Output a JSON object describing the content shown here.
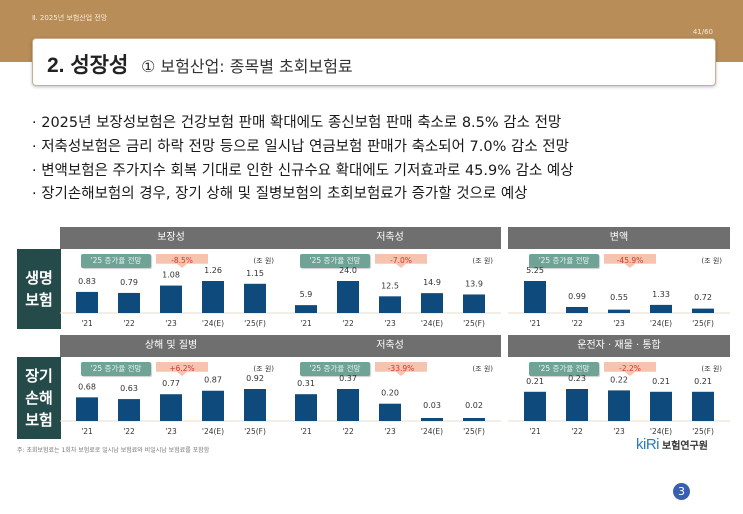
{
  "header": {
    "section_label": "Ⅱ. 2025년 보험산업 전망",
    "page_number": "41/60",
    "title_main": "2. 성장성",
    "title_sub": "① 보험산업: 종목별 초회보험료"
  },
  "bullets": [
    "· 2025년 보장성보험은 건강보험 판매 확대에도 종신보험 판매 축소로 8.5% 감소 전망",
    "· 저축성보험은 금리 하락 전망 등으로 일시납 연금보험 판매가 축소되어 7.0% 감소 전망",
    "· 변액보험은 주가지수 회복 기대로 인한 신규수요 확대에도 기저효과로 45.9% 감소 예상",
    "· 장기손해보험의 경우, 장기 상해 및 질병보험의 초회보험료가 증가할 것으로 예상"
  ],
  "row_labels": {
    "life": [
      "생명",
      "보험"
    ],
    "nonlife": [
      "장기",
      "손해",
      "보험"
    ]
  },
  "badge_label": "'25 증가율 전망",
  "unit_label": "(조 원)",
  "colors": {
    "bar": "#0e4a7c",
    "header_band": "#b98d57",
    "row_label_bg": "#244a4a",
    "panel_header_bg": "#6f6f6f",
    "badge_green": "#6fa396",
    "badge_red_bg": "#f6c3ae",
    "badge_red_text": "#d2382b"
  },
  "chart_data": [
    {
      "type": "bar",
      "title": "보장성",
      "group": "생명보험",
      "growth_2025": "-8.5%",
      "unit": "조 원",
      "categories": [
        "'21",
        "'22",
        "'23",
        "'24(E)",
        "'25(F)"
      ],
      "values": [
        0.83,
        0.79,
        1.08,
        1.26,
        1.15
      ],
      "value_labels": [
        "0.83",
        "0.79",
        "1.08",
        "1.26",
        "1.15"
      ]
    },
    {
      "type": "bar",
      "title": "저축성",
      "group": "생명보험",
      "growth_2025": "-7.0%",
      "unit": "조 원",
      "categories": [
        "'21",
        "'22",
        "'23",
        "'24(E)",
        "'25(F)"
      ],
      "values": [
        5.9,
        24.0,
        12.5,
        14.9,
        13.9
      ],
      "value_labels": [
        "5.9",
        "24.0",
        "12.5",
        "14.9",
        "13.9"
      ]
    },
    {
      "type": "bar",
      "title": "변액",
      "group": "생명보험",
      "growth_2025": "-45.9%",
      "unit": "조 원",
      "categories": [
        "'21",
        "'22",
        "'23",
        "'24(E)",
        "'25(F)"
      ],
      "values": [
        5.25,
        0.99,
        0.55,
        1.33,
        0.72
      ],
      "value_labels": [
        "5.25",
        "0.99",
        "0.55",
        "1.33",
        "0.72"
      ]
    },
    {
      "type": "bar",
      "title": "상해 및 질병",
      "group": "장기손해보험",
      "growth_2025": "+6.2%",
      "unit": "조 원",
      "categories": [
        "'21",
        "'22",
        "'23",
        "'24(E)",
        "'25(F)"
      ],
      "values": [
        0.68,
        0.63,
        0.77,
        0.87,
        0.92
      ],
      "value_labels": [
        "0.68",
        "0.63",
        "0.77",
        "0.87",
        "0.92"
      ]
    },
    {
      "type": "bar",
      "title": "저축성",
      "group": "장기손해보험",
      "growth_2025": "-33.9%",
      "unit": "조 원",
      "categories": [
        "'21",
        "'22",
        "'23",
        "'24(E)",
        "'25(F)"
      ],
      "values": [
        0.31,
        0.37,
        0.2,
        0.03,
        0.02
      ],
      "value_labels": [
        "0.31",
        "0.37",
        "0.20",
        "0.03",
        "0.02"
      ]
    },
    {
      "type": "bar",
      "title": "운전자 · 재물 · 통합",
      "group": "장기손해보험",
      "growth_2025": "-2.2%",
      "unit": "조 원",
      "categories": [
        "'21",
        "'22",
        "'23",
        "'24(E)",
        "'25(F)"
      ],
      "values": [
        0.21,
        0.23,
        0.22,
        0.21,
        0.21
      ],
      "value_labels": [
        "0.21",
        "0.23",
        "0.22",
        "0.21",
        "0.21"
      ]
    }
  ],
  "footnote": "주: 초회보험료는 1회차 보험료로 일시납 보험료와 비일시납 보험료를 포함함",
  "logo": {
    "mark": "kiRi",
    "text": "보험연구원"
  },
  "slide_badge": "3"
}
